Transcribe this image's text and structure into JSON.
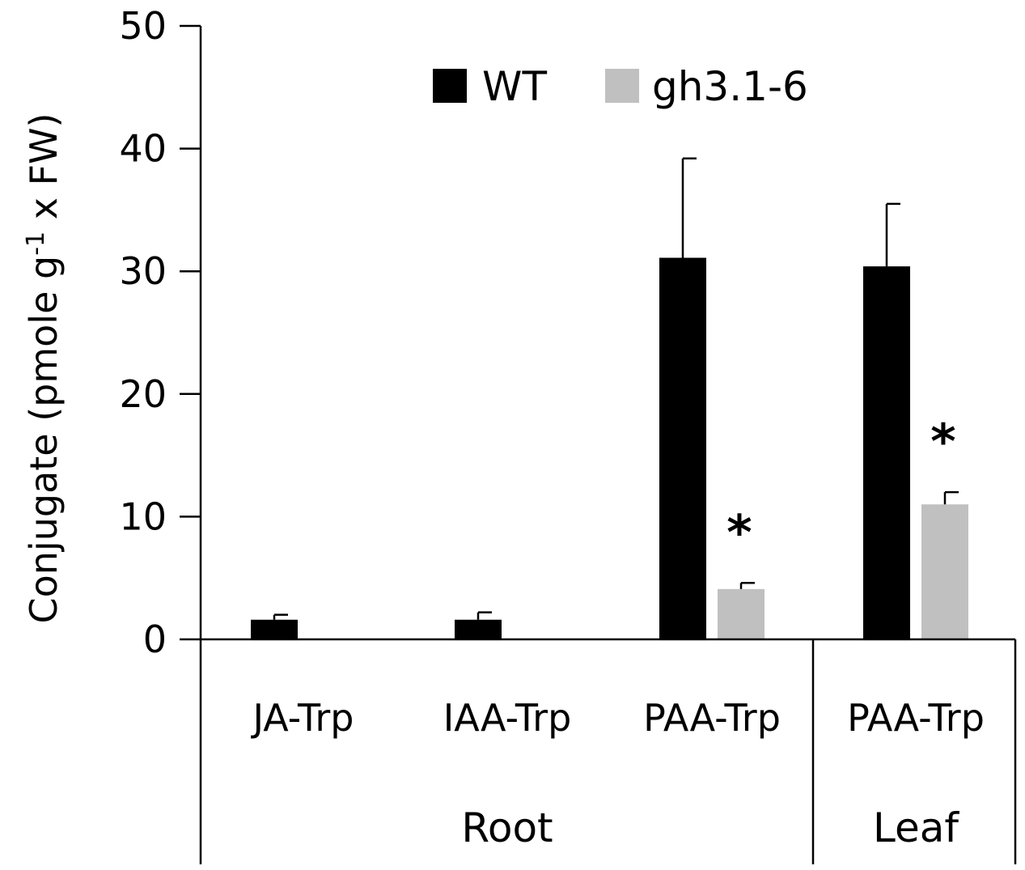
{
  "chart_data": {
    "type": "bar",
    "ylabel_parts": {
      "main": "Conjugate (pmole g",
      "sup": "-1",
      "tail": " x FW)"
    },
    "ylim": [
      0,
      50
    ],
    "yticks": [
      0,
      10,
      20,
      30,
      40,
      50
    ],
    "categories": [
      "JA-Trp",
      "IAA-Trp",
      "PAA-Trp",
      "PAA-Trp"
    ],
    "groups": [
      {
        "label": "Root",
        "categories": [
          0,
          1,
          2
        ]
      },
      {
        "label": "Leaf",
        "categories": [
          3
        ]
      }
    ],
    "series": [
      {
        "name": "WT",
        "color": "#000000",
        "values": [
          1.6,
          1.6,
          31.1,
          30.4
        ],
        "errors": [
          0.4,
          0.6,
          8.1,
          5.1
        ]
      },
      {
        "name": "gh3.1-6",
        "color": "#c0c0c0",
        "values": [
          0,
          0,
          4.1,
          11.0
        ],
        "errors": [
          0,
          0,
          0.5,
          1.0
        ]
      }
    ],
    "annotations": [
      {
        "text": "*",
        "category": 2,
        "series": 1
      },
      {
        "text": "*",
        "category": 3,
        "series": 1
      }
    ],
    "legend_position": "top-center",
    "grid": false
  }
}
